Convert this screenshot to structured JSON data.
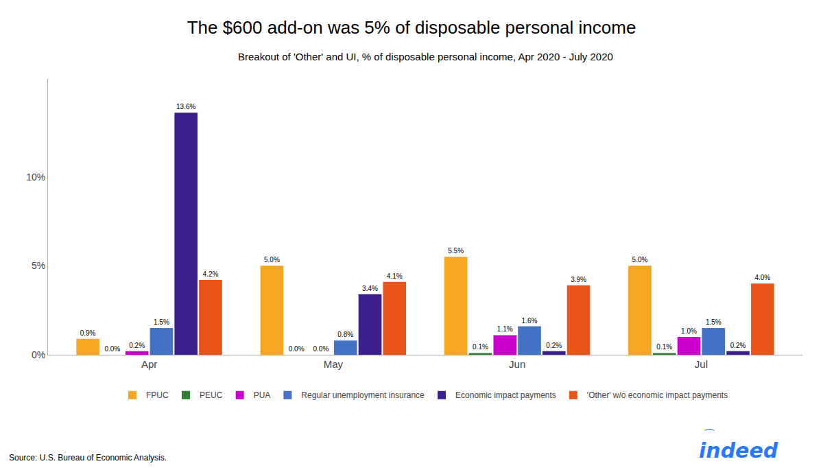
{
  "chart_data": {
    "type": "bar",
    "title": "The $600 add-on was 5% of disposable personal income",
    "subtitle": "Breakout of 'Other' and UI, % of disposable personal income, Apr 2020 - July 2020",
    "categories": [
      "Apr",
      "May",
      "Jun",
      "Jul"
    ],
    "series": [
      {
        "name": "FPUC",
        "color": "#F5A623",
        "values": [
          0.9,
          5.0,
          5.5,
          5.0
        ],
        "value_labels": [
          "0.9%",
          "5.0%",
          "5.5%",
          "5.0%"
        ]
      },
      {
        "name": "PEUC",
        "color": "#2E7D32",
        "values": [
          0.0,
          0.0,
          0.1,
          0.1
        ],
        "value_labels": [
          "0.0%",
          "0.0%",
          "0.1%",
          "0.1%"
        ]
      },
      {
        "name": "PUA",
        "color": "#CC00CC",
        "values": [
          0.2,
          0.0,
          1.1,
          1.0
        ],
        "value_labels": [
          "0.2%",
          "0.0%",
          "1.1%",
          "1.0%"
        ]
      },
      {
        "name": "Regular unemployment insurance",
        "color": "#4472C4",
        "values": [
          1.5,
          0.8,
          1.6,
          1.5
        ],
        "value_labels": [
          "1.5%",
          "0.8%",
          "1.6%",
          "1.5%"
        ]
      },
      {
        "name": "Economic impact payments",
        "color": "#3B1F8C",
        "values": [
          13.6,
          3.4,
          0.2,
          0.2
        ],
        "value_labels": [
          "13.6%",
          "3.4%",
          "0.2%",
          "0.2%"
        ]
      },
      {
        "name": "'Other' w/o economic impact payments",
        "color": "#E8541A",
        "values": [
          4.2,
          4.1,
          3.9,
          4.0
        ],
        "value_labels": [
          "4.2%",
          "4.1%",
          "3.9%",
          "4.0%"
        ]
      }
    ],
    "ylim": [
      0,
      15.5
    ],
    "yticks": [
      {
        "value": 0,
        "label": "0%"
      },
      {
        "value": 5,
        "label": "5%"
      },
      {
        "value": 10,
        "label": "10%"
      }
    ],
    "grid": false,
    "legend": "bottom",
    "data_labels": true,
    "annotations": [
      "Source: U.S. Bureau of Economic Analysis.",
      "indeed",
      "⁀"
    ],
    "color": "#2979FF"
  }
}
